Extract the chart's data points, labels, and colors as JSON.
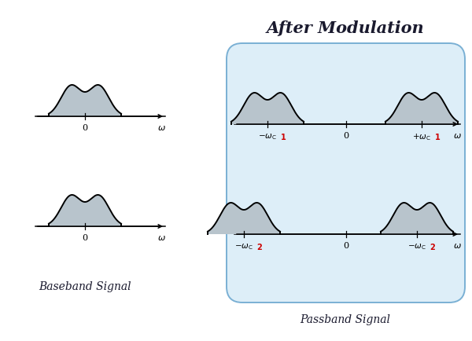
{
  "title": "After Modulation",
  "title_fontsize": 15,
  "bg_color": "#ffffff",
  "box_color": "#ddeef8",
  "box_edge_color": "#7ab0d4",
  "signal_fill_color": "#b8c4cc",
  "signal_line_color": "#000000",
  "label_baseband": "Baseband Signal",
  "label_passband": "Passband Signal",
  "label_fontsize": 10,
  "omega_c_color": "#cc0000",
  "text_color": "#1a1a2e"
}
